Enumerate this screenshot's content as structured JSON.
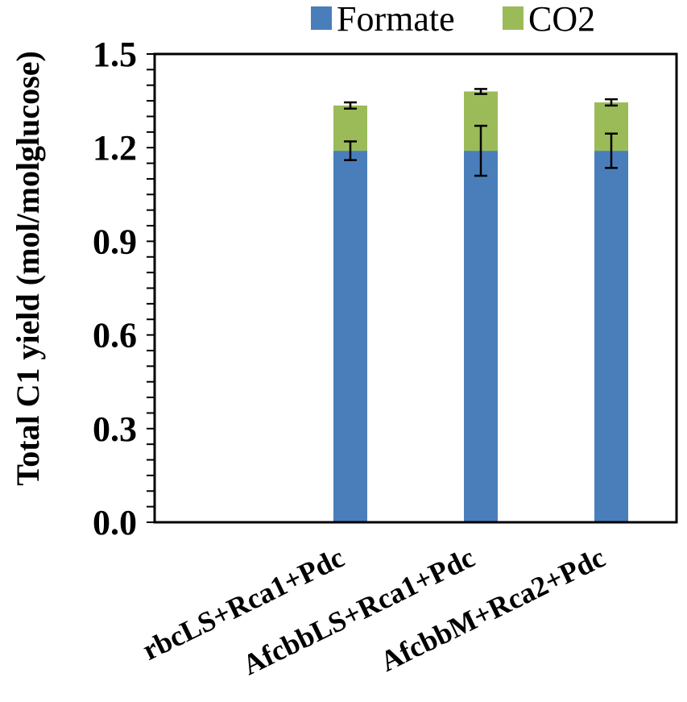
{
  "chart_data": {
    "type": "bar",
    "stacked": true,
    "title": "",
    "xlabel": "",
    "ylabel": "Total C1 yield (mol/molglucose)",
    "ylim": [
      0,
      1.5
    ],
    "yticks": [
      "0.0",
      "0.3",
      "0.6",
      "0.9",
      "1.2",
      "1.5"
    ],
    "categories": [
      "rbcLS+Rca1+Pdc",
      "AfcbbLS+Rca1+Pdc",
      "AfcbbM+Rca2+Pdc"
    ],
    "categories_include_empty_first_slot": true,
    "series": [
      {
        "name": "Formate",
        "color": "#4a7ebb",
        "values": [
          1.19,
          1.19,
          1.19
        ],
        "errors": [
          0.03,
          0.08,
          0.055
        ]
      },
      {
        "name": "CO2",
        "color": "#9bbb59",
        "values": [
          0.145,
          0.19,
          0.155
        ],
        "errors": [
          0.01,
          0.008,
          0.01
        ]
      }
    ],
    "legend_position": "top-right",
    "grid": false
  }
}
